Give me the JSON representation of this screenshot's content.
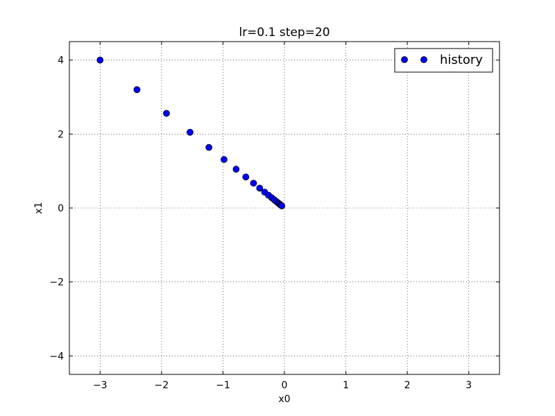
{
  "chart_data": {
    "type": "scatter",
    "title": "lr=0.1 step=20",
    "xlabel": "x0",
    "ylabel": "x1",
    "xlim": [
      -3.5,
      3.5
    ],
    "ylim": [
      -4.5,
      4.5
    ],
    "xticks": [
      -3,
      -2,
      -1,
      0,
      1,
      2,
      3
    ],
    "yticks": [
      -4,
      -2,
      0,
      2,
      4
    ],
    "xtick_labels": [
      "−3",
      "−2",
      "−1",
      "0",
      "1",
      "2",
      "3"
    ],
    "ytick_labels": [
      "−4",
      "−2",
      "0",
      "2",
      "4"
    ],
    "grid": true,
    "legend_position": "top-right",
    "series": [
      {
        "name": "history",
        "color": "#0000ff",
        "marker": "circle",
        "x": [
          -3.0,
          -2.4,
          -1.92,
          -1.536,
          -1.229,
          -0.983,
          -0.786,
          -0.629,
          -0.503,
          -0.403,
          -0.322,
          -0.258,
          -0.206,
          -0.165,
          -0.132,
          -0.106,
          -0.084,
          -0.068,
          -0.054,
          -0.043
        ],
        "y": [
          4.0,
          3.2,
          2.56,
          2.048,
          1.638,
          1.311,
          1.049,
          0.839,
          0.671,
          0.537,
          0.429,
          0.344,
          0.275,
          0.22,
          0.176,
          0.141,
          0.113,
          0.09,
          0.072,
          0.058
        ]
      }
    ]
  }
}
